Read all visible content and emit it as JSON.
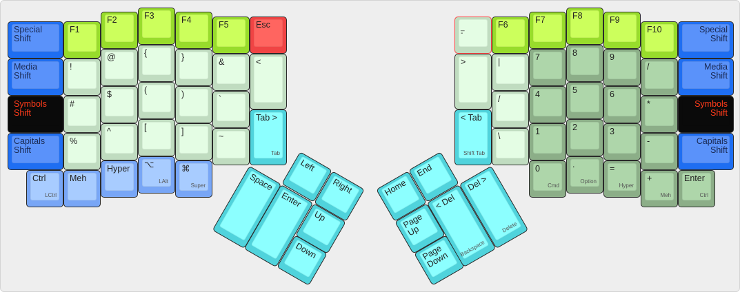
{
  "palette": {
    "fkey": {
      "outer": "#98dc2c",
      "inner": "#ccff5c",
      "text": "#222222"
    },
    "sym": {
      "outer": "#c0dcc0",
      "inner": "#e4fde4",
      "text": "#222222"
    },
    "num": {
      "outer": "#8cae88",
      "inner": "#aed6aa",
      "text": "#222222"
    },
    "shift": {
      "outer": "#1e6ef2",
      "inner": "#5a92fa",
      "text": "#1a2a55"
    },
    "symshift": {
      "outer": "#0a0a0a",
      "inner": "#0a0a0a",
      "text": "#ff3b1a"
    },
    "mod": {
      "outer": "#78a6f6",
      "inner": "#a8ccff",
      "text": "#222222"
    },
    "nav": {
      "outer": "#50d3dc",
      "inner": "#8cffff",
      "text": "#222222"
    },
    "esc": {
      "outer": "#f04444",
      "inner": "#ff6560",
      "text": "#222222"
    }
  },
  "left_hand": [
    {
      "label": "Special\nShift",
      "color": "shift"
    },
    {
      "label": "Media\nShift",
      "color": "shift"
    },
    {
      "label": "Symbols\nShift",
      "color": "symshift"
    },
    {
      "label": "Capitals\nShift",
      "color": "shift"
    },
    {
      "label": "Ctrl",
      "sub": "LCtrl",
      "color": "mod"
    },
    {
      "label": "F1",
      "color": "fkey"
    },
    {
      "label": "!",
      "color": "sym"
    },
    {
      "label": "#",
      "color": "sym"
    },
    {
      "label": "%",
      "color": "sym"
    },
    {
      "label": "Meh",
      "color": "mod"
    },
    {
      "label": "F2",
      "color": "fkey"
    },
    {
      "label": "@",
      "color": "sym"
    },
    {
      "label": "$",
      "color": "sym"
    },
    {
      "label": "^",
      "color": "sym"
    },
    {
      "label": "Hyper",
      "color": "mod"
    },
    {
      "label": "F3",
      "color": "fkey"
    },
    {
      "label": "{",
      "color": "sym"
    },
    {
      "label": "(",
      "color": "sym"
    },
    {
      "label": "[",
      "color": "sym"
    },
    {
      "label": "⌥",
      "sub": "LAlt",
      "color": "mod"
    },
    {
      "label": "F4",
      "color": "fkey"
    },
    {
      "label": "}",
      "color": "sym"
    },
    {
      "label": ")",
      "color": "sym"
    },
    {
      "label": "]",
      "color": "sym"
    },
    {
      "label": "⌘",
      "sub": "Super",
      "color": "mod"
    },
    {
      "label": "F5",
      "color": "fkey"
    },
    {
      "label": "&",
      "color": "sym"
    },
    {
      "label": "`",
      "color": "sym"
    },
    {
      "label": "~",
      "color": "sym"
    },
    {
      "label": "Esc",
      "color": "esc"
    },
    {
      "label": "<",
      "color": "sym"
    },
    {
      "label": "Tab >",
      "sub": "Tab",
      "color": "nav"
    }
  ],
  "right_hand": [
    {
      "label": "_\n-",
      "color": "sym",
      "highlight": "#ff4444"
    },
    {
      "label": ">",
      "color": "sym"
    },
    {
      "label": "< Tab",
      "sub": "Shift Tab",
      "color": "nav"
    },
    {
      "label": "F6",
      "color": "fkey"
    },
    {
      "label": "|",
      "color": "sym"
    },
    {
      "label": "/",
      "color": "sym"
    },
    {
      "label": "\\",
      "color": "sym"
    },
    {
      "label": "F7",
      "color": "fkey"
    },
    {
      "label": "7",
      "color": "num"
    },
    {
      "label": "4",
      "color": "num"
    },
    {
      "label": "1",
      "color": "num"
    },
    {
      "label": "0",
      "sub": "Cmd",
      "color": "num"
    },
    {
      "label": "F8",
      "color": "fkey"
    },
    {
      "label": "8",
      "color": "num"
    },
    {
      "label": "5",
      "color": "num"
    },
    {
      "label": "2",
      "color": "num"
    },
    {
      "label": ".",
      "sub": "Option",
      "color": "num"
    },
    {
      "label": "F9",
      "color": "fkey"
    },
    {
      "label": "9",
      "color": "num"
    },
    {
      "label": "6",
      "color": "num"
    },
    {
      "label": "3",
      "color": "num"
    },
    {
      "label": "=",
      "sub": "Hyper",
      "color": "num"
    },
    {
      "label": "F10",
      "color": "fkey"
    },
    {
      "label": "/",
      "color": "num"
    },
    {
      "label": "*",
      "color": "num"
    },
    {
      "label": "-",
      "color": "num"
    },
    {
      "label": "+",
      "sub": "Meh",
      "color": "num"
    },
    {
      "label": "Special\nShift",
      "color": "shift"
    },
    {
      "label": "Media\nShift",
      "color": "shift"
    },
    {
      "label": "Symbols\nShift",
      "color": "symshift"
    },
    {
      "label": "Capitals\nShift",
      "color": "shift"
    },
    {
      "label": "Enter",
      "sub": "Ctrl",
      "color": "num"
    }
  ],
  "left_thumb": [
    {
      "label": "Left",
      "color": "nav"
    },
    {
      "label": "Right",
      "color": "nav"
    },
    {
      "label": "Up",
      "color": "nav"
    },
    {
      "label": "Down",
      "color": "nav"
    },
    {
      "label": "Space",
      "color": "nav"
    },
    {
      "label": "Enter",
      "color": "nav"
    }
  ],
  "right_thumb": [
    {
      "label": "Home",
      "color": "nav"
    },
    {
      "label": "End",
      "color": "nav"
    },
    {
      "label": "Page\nUp",
      "color": "nav"
    },
    {
      "label": "Page\nDown",
      "color": "nav"
    },
    {
      "label": "< Del",
      "sub": "Backspace",
      "color": "nav"
    },
    {
      "label": "Del >",
      "sub": "Delete",
      "color": "nav"
    }
  ]
}
